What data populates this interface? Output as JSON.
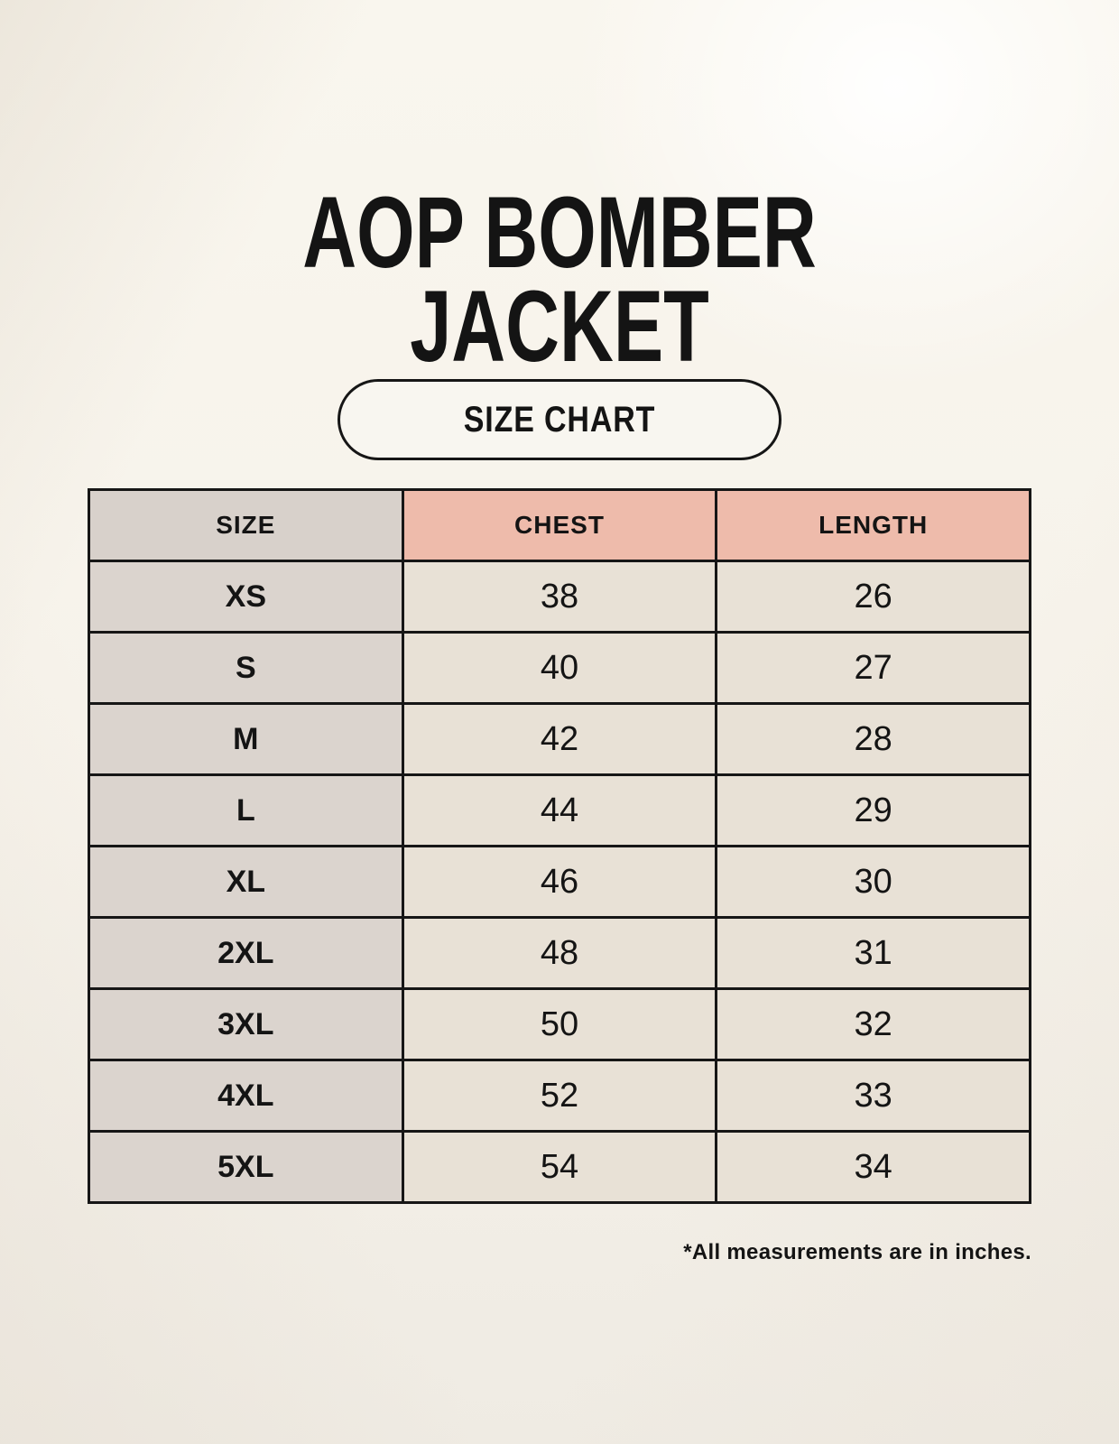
{
  "page": {
    "title_line1": "AOP BOMBER",
    "title_line2": "JACKET",
    "badge_label": "SIZE CHART",
    "footnote": "*All measurements are in inches."
  },
  "table": {
    "columns": [
      "SIZE",
      "CHEST",
      "LENGTH"
    ],
    "rows": [
      {
        "size": "XS",
        "chest": "38",
        "length": "26"
      },
      {
        "size": "S",
        "chest": "40",
        "length": "27"
      },
      {
        "size": "M",
        "chest": "42",
        "length": "28"
      },
      {
        "size": "L",
        "chest": "44",
        "length": "29"
      },
      {
        "size": "XL",
        "chest": "46",
        "length": "30"
      },
      {
        "size": "2XL",
        "chest": "48",
        "length": "31"
      },
      {
        "size": "3XL",
        "chest": "50",
        "length": "32"
      },
      {
        "size": "4XL",
        "chest": "52",
        "length": "33"
      },
      {
        "size": "5XL",
        "chest": "54",
        "length": "34"
      }
    ],
    "units": "inches"
  },
  "colors": {
    "background": "#f7f3eb",
    "header_size_bg": "#d8d1cb",
    "header_measure_bg": "#eebbab",
    "size_col_bg": "#dbd4ce",
    "data_cell_bg": "#e8e1d6",
    "border": "#161616",
    "text": "#141414"
  }
}
